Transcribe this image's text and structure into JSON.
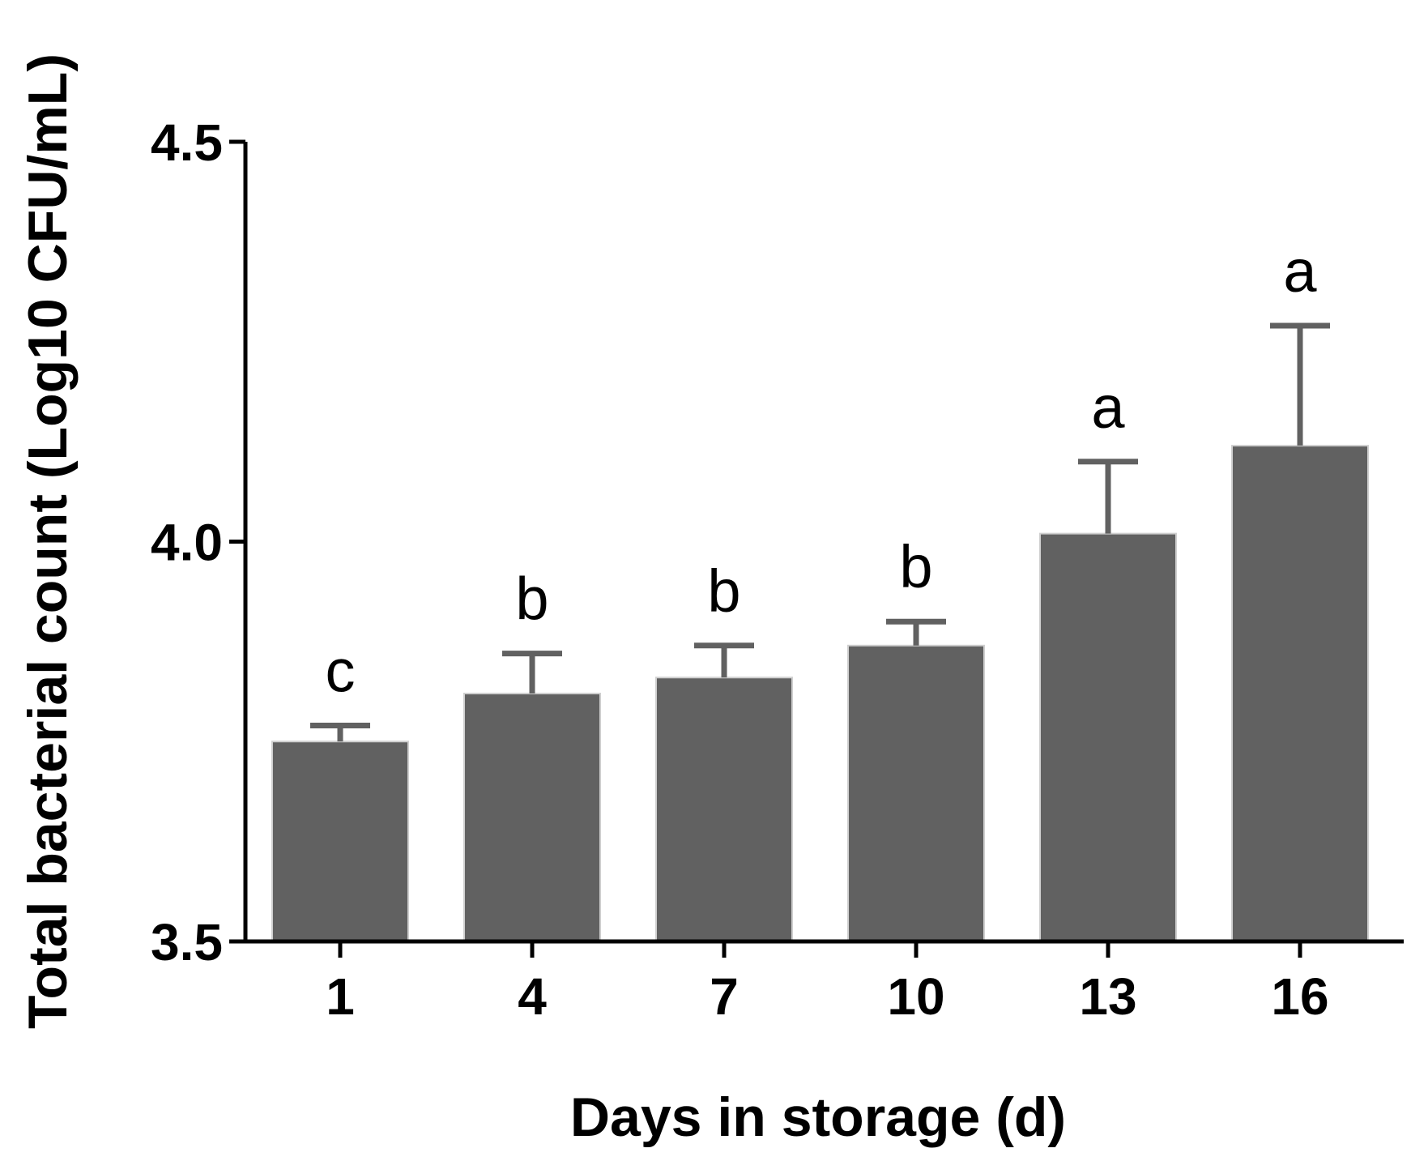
{
  "chart_data": {
    "type": "bar",
    "title": "",
    "xlabel": "Days in storage (d)",
    "ylabel": "Total bacterial count (Log10 CFU/mL)",
    "ylim": [
      3.5,
      4.5
    ],
    "yticks": [
      3.5,
      4.0,
      4.5
    ],
    "ytick_labels": [
      "3.5",
      "4.0",
      "4.5"
    ],
    "grid": false,
    "categories": [
      "1",
      "4",
      "7",
      "10",
      "13",
      "16"
    ],
    "values": [
      3.75,
      3.81,
      3.83,
      3.87,
      4.01,
      4.12
    ],
    "error": [
      0.02,
      0.05,
      0.04,
      0.03,
      0.09,
      0.15
    ],
    "annotations": [
      "c",
      "b",
      "b",
      "b",
      "a",
      "a"
    ],
    "colors": {
      "bar": "#616161",
      "error_bar": "#616161",
      "axis": "#000000"
    }
  }
}
